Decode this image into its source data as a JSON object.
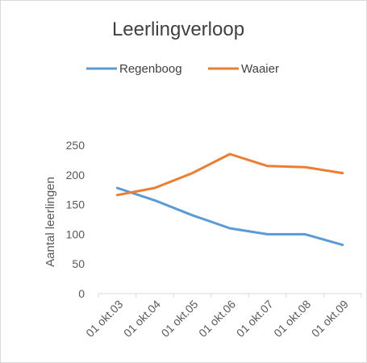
{
  "chart_data": {
    "type": "line",
    "title": "Leerlingverloop",
    "xlabel": "",
    "ylabel": "Aantal leerlingen",
    "categories": [
      "01 okt.03",
      "01 okt.04",
      "01 okt.05",
      "01 okt.06",
      "01 okt.07",
      "01 okt.08",
      "01 okt.09"
    ],
    "ylim": [
      0,
      250
    ],
    "yticks": [
      0,
      50,
      100,
      150,
      200,
      250
    ],
    "grid": false,
    "legend_position": "top",
    "series": [
      {
        "name": "Regenboog",
        "color": "#5b9bd5",
        "values": [
          178,
          157,
          132,
          110,
          100,
          100,
          82
        ]
      },
      {
        "name": "Waaier",
        "color": "#ed7d31",
        "values": [
          166,
          178,
          203,
          235,
          215,
          213,
          203
        ]
      }
    ]
  }
}
